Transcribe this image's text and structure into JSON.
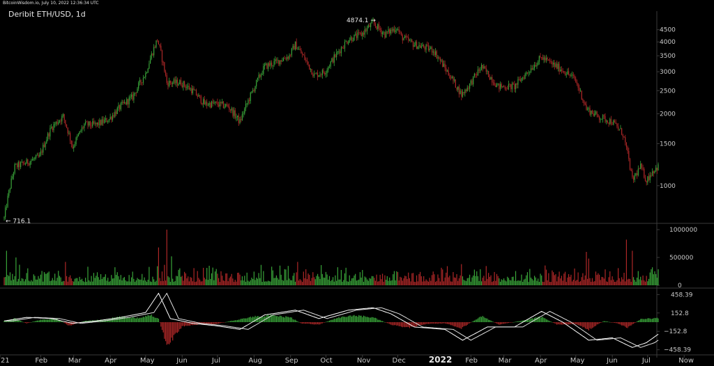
{
  "header": {
    "source_line": "BitcoinWisdom.io, July 10, 2022 12:36:34 UTC",
    "title": "Deribit ETH/USD, 1d"
  },
  "colors": {
    "up": "#3aa63a",
    "down": "#b02828",
    "macd_line": "#ffffff",
    "signal_line": "#e0e0e0",
    "grid": "#3a3a3a",
    "text": "#c8c8c8"
  },
  "chart_data": [
    {
      "type": "candlestick",
      "title": "Deribit ETH/USD, 1d",
      "scale": "log",
      "yticks": [
        1000,
        1500,
        2000,
        2500,
        3000,
        3500,
        4000,
        4500
      ],
      "ylim": [
        700,
        4900
      ],
      "annotations": [
        {
          "label": "4874.1",
          "at": "2021-11-10"
        },
        {
          "label": "716.1",
          "at": "2021-01-01"
        }
      ],
      "x_tick_labels": [
        "21",
        "Feb",
        "Mar",
        "Apr",
        "May",
        "Jun",
        "Jul",
        "Aug",
        "Sep",
        "Oct",
        "Nov",
        "Dec",
        "2022",
        "Feb",
        "Mar",
        "Apr",
        "May",
        "Jun",
        "Jul",
        "Now"
      ],
      "close_path": [
        [
          "2021-01-01",
          730
        ],
        [
          "2021-01-10",
          1200
        ],
        [
          "2021-01-20",
          1250
        ],
        [
          "2021-01-31",
          1320
        ],
        [
          "2021-02-10",
          1750
        ],
        [
          "2021-02-20",
          1950
        ],
        [
          "2021-02-28",
          1450
        ],
        [
          "2021-03-10",
          1800
        ],
        [
          "2021-03-20",
          1800
        ],
        [
          "2021-03-31",
          1900
        ],
        [
          "2021-04-10",
          2150
        ],
        [
          "2021-04-20",
          2350
        ],
        [
          "2021-05-01",
          2950
        ],
        [
          "2021-05-11",
          4100
        ],
        [
          "2021-05-19",
          2700
        ],
        [
          "2021-05-31",
          2700
        ],
        [
          "2021-06-10",
          2500
        ],
        [
          "2021-06-20",
          2200
        ],
        [
          "2021-06-30",
          2200
        ],
        [
          "2021-07-10",
          2150
        ],
        [
          "2021-07-20",
          1850
        ],
        [
          "2021-07-31",
          2500
        ],
        [
          "2021-08-10",
          3150
        ],
        [
          "2021-08-20",
          3300
        ],
        [
          "2021-08-31",
          3500
        ],
        [
          "2021-09-05",
          3900
        ],
        [
          "2021-09-21",
          2900
        ],
        [
          "2021-09-30",
          3000
        ],
        [
          "2021-10-10",
          3550
        ],
        [
          "2021-10-20",
          4100
        ],
        [
          "2021-10-31",
          4300
        ],
        [
          "2021-11-10",
          4800
        ],
        [
          "2021-11-20",
          4300
        ],
        [
          "2021-11-30",
          4600
        ],
        [
          "2021-12-04",
          4200
        ],
        [
          "2021-12-15",
          3900
        ],
        [
          "2021-12-31",
          3700
        ],
        [
          "2022-01-10",
          3100
        ],
        [
          "2022-01-24",
          2400
        ],
        [
          "2022-01-31",
          2650
        ],
        [
          "2022-02-10",
          3150
        ],
        [
          "2022-02-24",
          2600
        ],
        [
          "2022-03-10",
          2600
        ],
        [
          "2022-03-20",
          2950
        ],
        [
          "2022-04-02",
          3450
        ],
        [
          "2022-04-10",
          3250
        ],
        [
          "2022-04-20",
          3050
        ],
        [
          "2022-04-30",
          2800
        ],
        [
          "2022-05-10",
          2100
        ],
        [
          "2022-05-20",
          1950
        ],
        [
          "2022-06-01",
          1850
        ],
        [
          "2022-06-10",
          1650
        ],
        [
          "2022-06-18",
          1050
        ],
        [
          "2022-06-25",
          1200
        ],
        [
          "2022-06-30",
          1050
        ],
        [
          "2022-07-05",
          1150
        ],
        [
          "2022-07-10",
          1200
        ]
      ]
    },
    {
      "type": "bar",
      "title": "",
      "series_name": "",
      "yticks": [
        0,
        500000,
        1000000
      ],
      "ylim": [
        0,
        1000000
      ],
      "spikes": [
        [
          "2021-01-03",
          620000
        ],
        [
          "2021-01-11",
          500000
        ],
        [
          "2021-02-22",
          420000
        ],
        [
          "2021-05-19",
          1000000
        ],
        [
          "2021-05-12",
          680000
        ],
        [
          "2021-05-23",
          520000
        ],
        [
          "2021-09-07",
          420000
        ],
        [
          "2022-01-24",
          380000
        ],
        [
          "2022-05-10",
          600000
        ],
        [
          "2022-05-12",
          480000
        ],
        [
          "2022-06-13",
          820000
        ],
        [
          "2022-06-18",
          620000
        ]
      ]
    },
    {
      "type": "bar",
      "title": "",
      "yticks": [
        -458.39,
        -152.8,
        152.8,
        458.39
      ],
      "ytick_labels": [
        "−458.39",
        "−152.8",
        "152.8",
        "458.39"
      ],
      "ylim": [
        -520,
        520
      ],
      "histogram_path": [
        [
          "2021-01-01",
          20
        ],
        [
          "2021-01-10",
          60
        ],
        [
          "2021-01-20",
          -20
        ],
        [
          "2021-02-01",
          40
        ],
        [
          "2021-02-15",
          60
        ],
        [
          "2021-02-25",
          -60
        ],
        [
          "2021-03-10",
          20
        ],
        [
          "2021-03-25",
          40
        ],
        [
          "2021-04-10",
          90
        ],
        [
          "2021-04-25",
          70
        ],
        [
          "2021-05-05",
          120
        ],
        [
          "2021-05-12",
          60
        ],
        [
          "2021-05-16",
          -200
        ],
        [
          "2021-05-20",
          -380
        ],
        [
          "2021-06-01",
          -70
        ],
        [
          "2021-06-15",
          -40
        ],
        [
          "2021-06-30",
          -30
        ],
        [
          "2021-07-15",
          30
        ],
        [
          "2021-07-31",
          90
        ],
        [
          "2021-08-15",
          110
        ],
        [
          "2021-09-01",
          80
        ],
        [
          "2021-09-10",
          -20
        ],
        [
          "2021-09-25",
          -40
        ],
        [
          "2021-10-10",
          70
        ],
        [
          "2021-10-25",
          110
        ],
        [
          "2021-11-10",
          80
        ],
        [
          "2021-11-25",
          -40
        ],
        [
          "2021-12-10",
          -90
        ],
        [
          "2021-12-25",
          -30
        ],
        [
          "2022-01-10",
          -20
        ],
        [
          "2022-01-24",
          -100
        ],
        [
          "2022-02-10",
          100
        ],
        [
          "2022-02-25",
          -40
        ],
        [
          "2022-03-15",
          20
        ],
        [
          "2022-04-02",
          90
        ],
        [
          "2022-04-15",
          -40
        ],
        [
          "2022-05-01",
          -30
        ],
        [
          "2022-05-12",
          -120
        ],
        [
          "2022-05-25",
          20
        ],
        [
          "2022-06-05",
          -20
        ],
        [
          "2022-06-14",
          -90
        ],
        [
          "2022-06-25",
          50
        ],
        [
          "2022-07-10",
          70
        ]
      ],
      "macd_path": [
        [
          "2021-01-01",
          20
        ],
        [
          "2021-01-20",
          80
        ],
        [
          "2021-02-10",
          60
        ],
        [
          "2021-02-28",
          -20
        ],
        [
          "2021-03-20",
          20
        ],
        [
          "2021-04-10",
          80
        ],
        [
          "2021-05-01",
          160
        ],
        [
          "2021-05-12",
          480
        ],
        [
          "2021-05-22",
          60
        ],
        [
          "2021-06-10",
          -20
        ],
        [
          "2021-06-30",
          -60
        ],
        [
          "2021-07-20",
          -120
        ],
        [
          "2021-08-10",
          120
        ],
        [
          "2021-09-05",
          200
        ],
        [
          "2021-09-25",
          60
        ],
        [
          "2021-10-20",
          200
        ],
        [
          "2021-11-10",
          240
        ],
        [
          "2021-11-25",
          140
        ],
        [
          "2021-12-15",
          -80
        ],
        [
          "2022-01-10",
          -120
        ],
        [
          "2022-01-25",
          -300
        ],
        [
          "2022-02-15",
          -80
        ],
        [
          "2022-03-10",
          -80
        ],
        [
          "2022-04-02",
          180
        ],
        [
          "2022-04-20",
          0
        ],
        [
          "2022-05-12",
          -300
        ],
        [
          "2022-06-01",
          -260
        ],
        [
          "2022-06-18",
          -420
        ],
        [
          "2022-06-30",
          -340
        ],
        [
          "2022-07-10",
          -200
        ]
      ]
    }
  ]
}
